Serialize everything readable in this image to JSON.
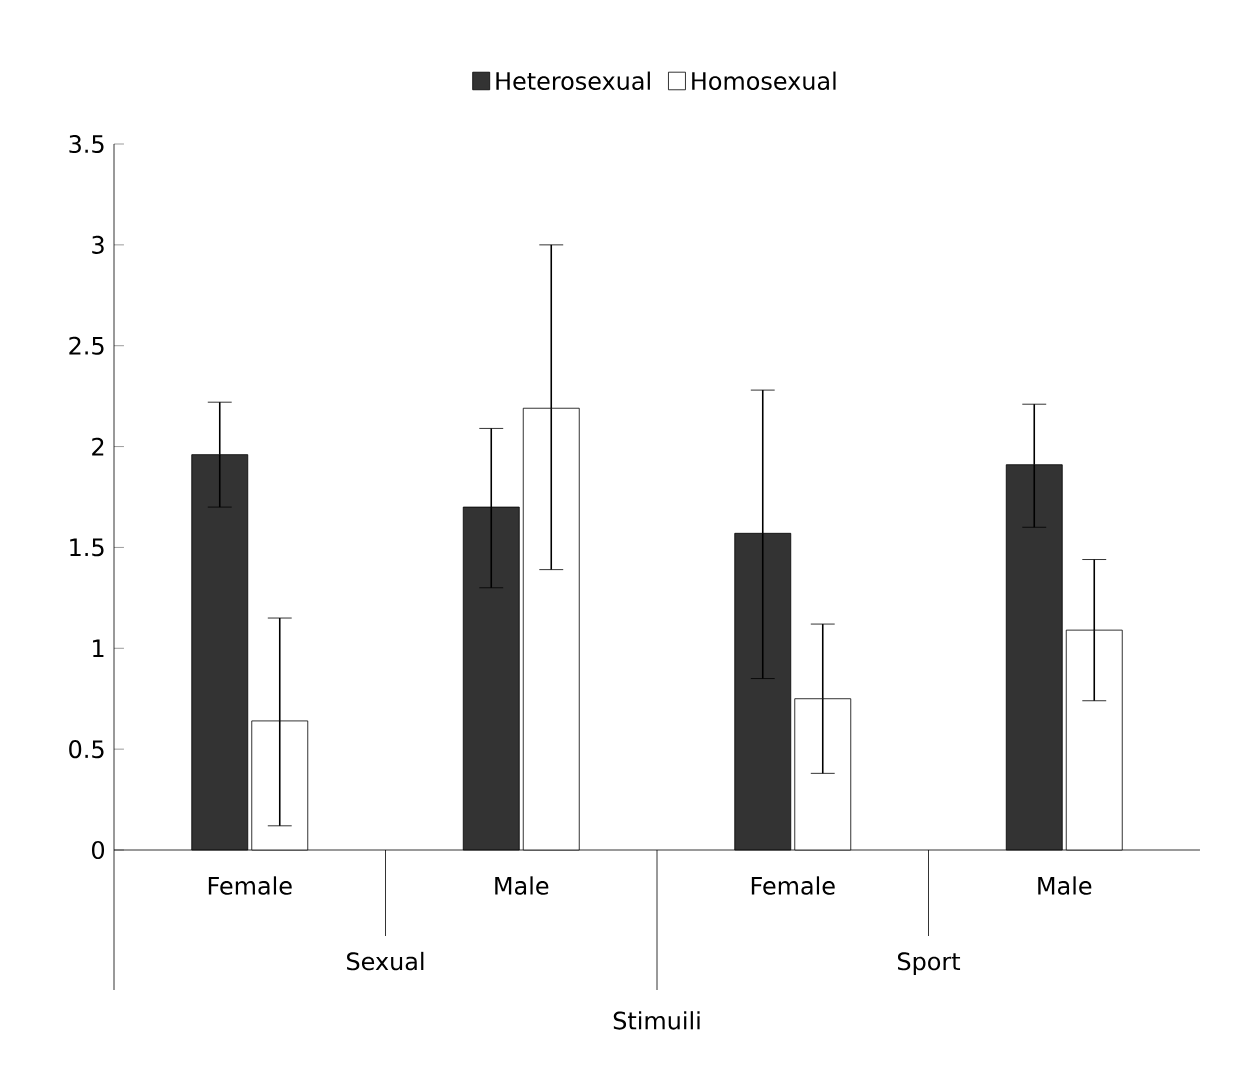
{
  "chart_data": {
    "type": "bar",
    "xlabel": "Stimuili",
    "categories": [
      "Female",
      "Male",
      "Female",
      "Male"
    ],
    "series": [
      {
        "name": "Heterosexual",
        "color": "#333333",
        "values": [
          1.96,
          1.7,
          1.57,
          1.91
        ],
        "errors": [
          [
            1.7,
            2.22
          ],
          [
            1.3,
            2.09
          ],
          [
            0.85,
            2.28
          ],
          [
            1.6,
            2.21
          ]
        ]
      },
      {
        "name": "Homosexual",
        "color": "#ffffff",
        "values": [
          0.64,
          2.19,
          0.75,
          1.09
        ],
        "errors": [
          [
            0.12,
            1.15
          ],
          [
            1.39,
            3.0
          ],
          [
            0.38,
            1.12
          ],
          [
            0.74,
            1.44
          ]
        ]
      }
    ],
    "annotations": [
      "Sexual",
      "Sport"
    ],
    "ylim": [
      0,
      3.5
    ],
    "yticks": [
      0,
      0.5,
      1,
      1.5,
      2,
      2.5,
      3,
      3.5
    ],
    "legend": "top",
    "grid": false
  }
}
